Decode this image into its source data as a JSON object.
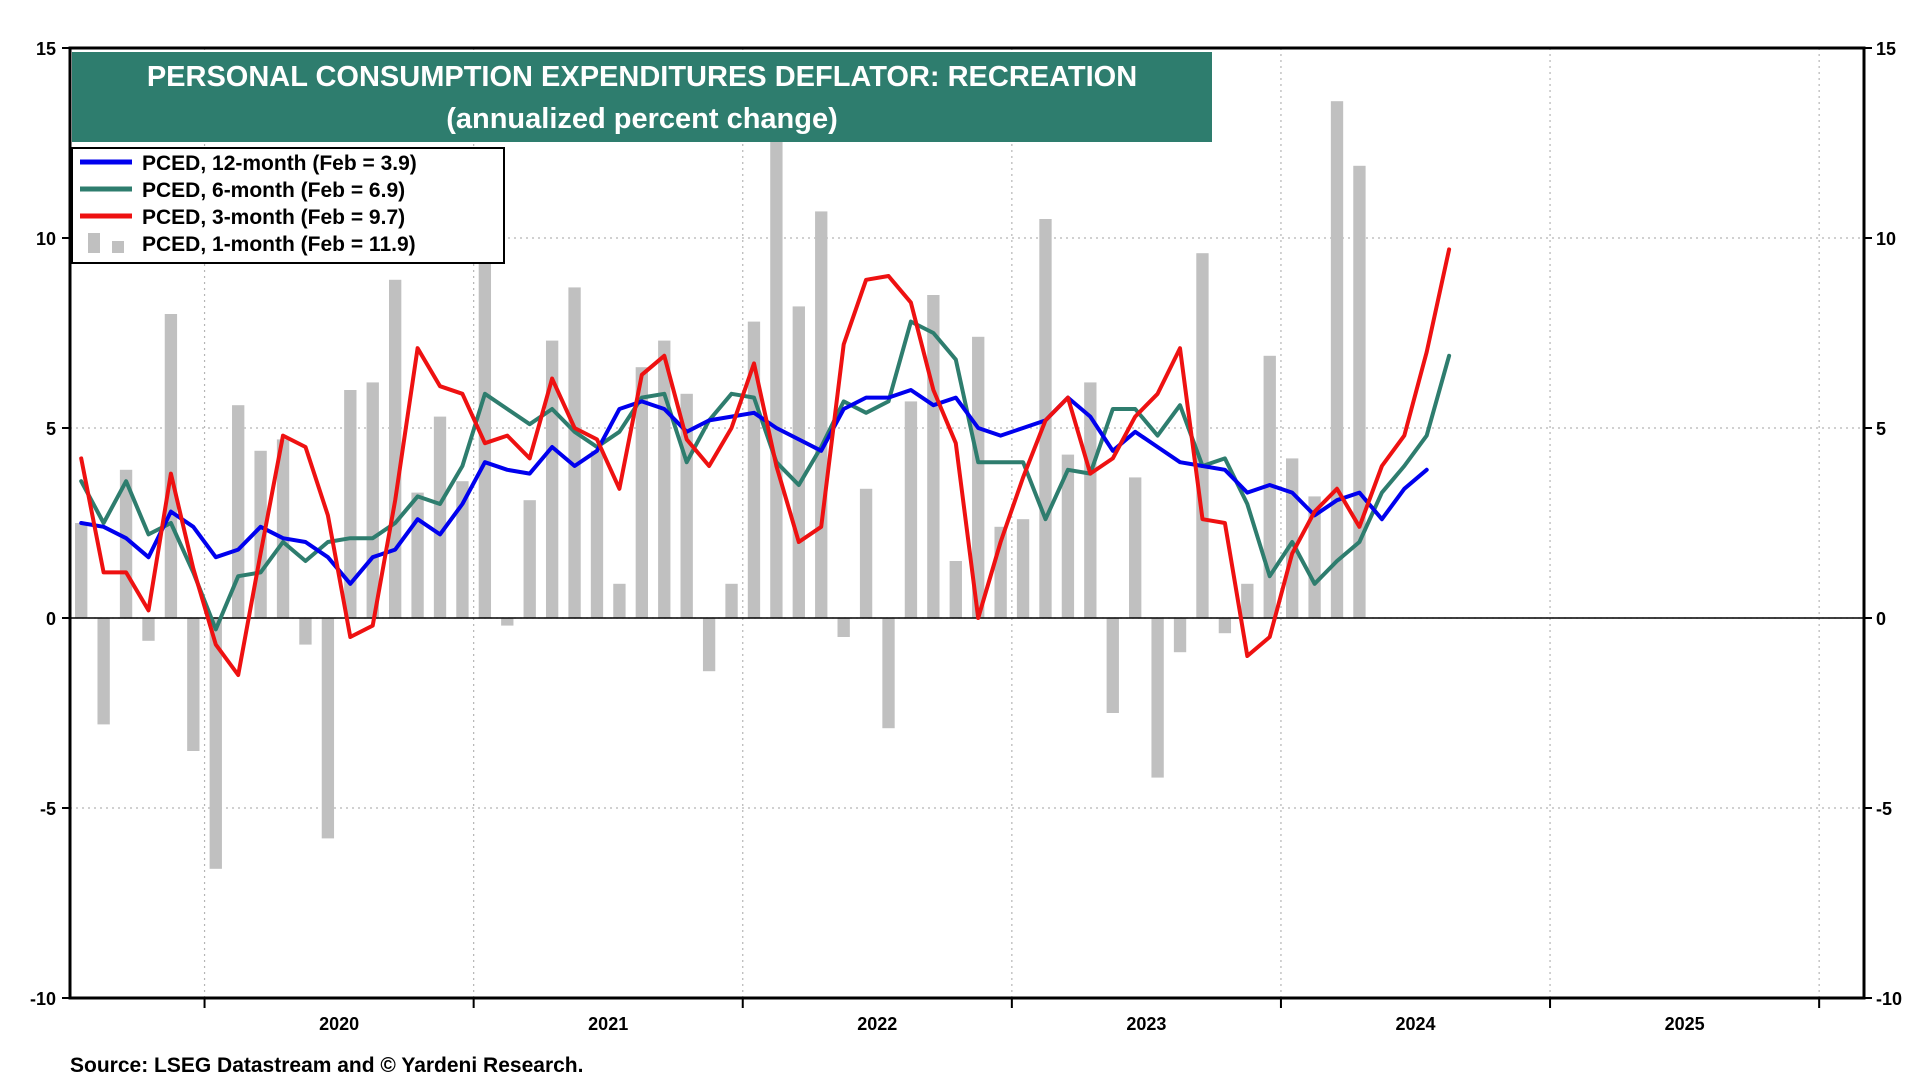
{
  "chart_data": {
    "type": "bar+line",
    "title": "PERSONAL CONSUMPTION EXPENDITURES DEFLATOR: RECREATION",
    "subtitle": "(annualized percent change)",
    "source": "Source: LSEG Datastream and © Yardeni Research.",
    "ylim": [
      -10,
      15
    ],
    "yticks_left": [
      "15",
      "10",
      "5",
      "0",
      "-5",
      "-10"
    ],
    "yticks_right": [
      "15",
      "10",
      "5",
      "0",
      "-5",
      "-10"
    ],
    "ytick_values": [
      15,
      10,
      5,
      0,
      -5,
      -10
    ],
    "x_start": "2019-07",
    "n_months": 80,
    "year_labels": [
      "2020",
      "2021",
      "2022",
      "2023",
      "2024",
      "2025"
    ],
    "legend": [
      {
        "label": "PCED, 12-month (Feb = 3.9)",
        "color": "#0000ee",
        "kind": "line"
      },
      {
        "label": "PCED, 6-month (Feb = 6.9)",
        "color": "#2e7d6e",
        "kind": "line"
      },
      {
        "label": "PCED, 3-month (Feb = 9.7)",
        "color": "#ee1111",
        "kind": "line"
      },
      {
        "label": "PCED, 1-month (Feb = 11.9)",
        "color": "#c0c0c0",
        "kind": "bar"
      }
    ],
    "series": [
      {
        "name": "PCED, 1-month",
        "kind": "bar",
        "color": "#c0c0c0",
        "values": [
          2.5,
          -2.8,
          3.9,
          -0.6,
          8.0,
          -3.5,
          -6.6,
          5.6,
          4.4,
          4.7,
          -0.7,
          -5.8,
          6.0,
          6.2,
          8.9,
          3.3,
          5.3,
          3.6,
          11.5,
          -0.2,
          3.1,
          7.3,
          8.7,
          4.4,
          0.9,
          6.6,
          7.3,
          5.9,
          -1.4,
          0.9,
          7.8,
          14.8,
          8.2,
          10.7,
          -0.5,
          3.4,
          -2.9,
          5.7,
          8.5,
          1.5,
          7.4,
          2.4,
          2.6,
          10.5,
          4.3,
          6.2,
          -2.5,
          3.7,
          -4.2,
          -0.9,
          9.6,
          -0.4,
          0.9,
          6.9,
          4.2,
          3.2,
          13.6,
          11.9
        ]
      },
      {
        "name": "PCED, 12-month",
        "kind": "line",
        "color": "#0000ee",
        "values": [
          2.5,
          2.4,
          2.1,
          1.6,
          2.8,
          2.4,
          1.6,
          1.8,
          2.4,
          2.1,
          2.0,
          1.6,
          0.9,
          1.6,
          1.8,
          2.6,
          2.2,
          3.0,
          4.1,
          3.9,
          3.8,
          4.5,
          4.0,
          4.4,
          5.5,
          5.7,
          5.5,
          4.9,
          5.2,
          5.3,
          5.4,
          5.0,
          4.7,
          4.4,
          5.5,
          5.8,
          5.8,
          6.0,
          5.6,
          5.8,
          5.0,
          4.8,
          5.0,
          5.2,
          5.8,
          5.3,
          4.4,
          4.9,
          4.5,
          4.1,
          4.0,
          3.9,
          3.3,
          3.5,
          3.3,
          2.7,
          3.1,
          3.3,
          2.6,
          3.4,
          3.9
        ]
      },
      {
        "name": "PCED, 6-month",
        "kind": "line",
        "color": "#2e7d6e",
        "values": [
          3.6,
          2.5,
          3.6,
          2.2,
          2.5,
          1.2,
          -0.3,
          1.1,
          1.2,
          2.0,
          1.5,
          2.0,
          2.1,
          2.1,
          2.5,
          3.2,
          3.0,
          4.0,
          5.9,
          5.5,
          5.1,
          5.5,
          4.9,
          4.5,
          4.9,
          5.8,
          5.9,
          4.1,
          5.2,
          5.9,
          5.8,
          4.1,
          3.5,
          4.5,
          5.7,
          5.4,
          5.7,
          7.8,
          7.5,
          6.8,
          4.1,
          4.1,
          4.1,
          2.6,
          3.9,
          3.8,
          5.5,
          5.5,
          4.8,
          5.6,
          4.0,
          4.2,
          3.0,
          1.1,
          2.0,
          0.9,
          1.5,
          2.0,
          3.3,
          4.0,
          4.8,
          6.9
        ]
      },
      {
        "name": "PCED, 3-month",
        "kind": "line",
        "color": "#ee1111",
        "values": [
          4.2,
          1.2,
          1.2,
          0.2,
          3.8,
          1.3,
          -0.7,
          -1.5,
          1.7,
          4.8,
          4.5,
          2.7,
          -0.5,
          -0.2,
          3.1,
          7.1,
          6.1,
          5.9,
          4.6,
          4.8,
          4.2,
          6.3,
          5.0,
          4.7,
          3.4,
          6.4,
          6.9,
          4.7,
          4.0,
          5.0,
          6.7,
          4.0,
          2.0,
          2.4,
          7.2,
          8.9,
          9.0,
          8.3,
          6.0,
          4.6,
          0.0,
          2.0,
          3.7,
          5.2,
          5.8,
          3.8,
          4.2,
          5.3,
          5.9,
          7.1,
          2.6,
          2.5,
          -1.0,
          -0.5,
          1.7,
          2.8,
          3.4,
          2.4,
          4.0,
          4.8,
          7.0,
          9.7
        ]
      }
    ]
  }
}
